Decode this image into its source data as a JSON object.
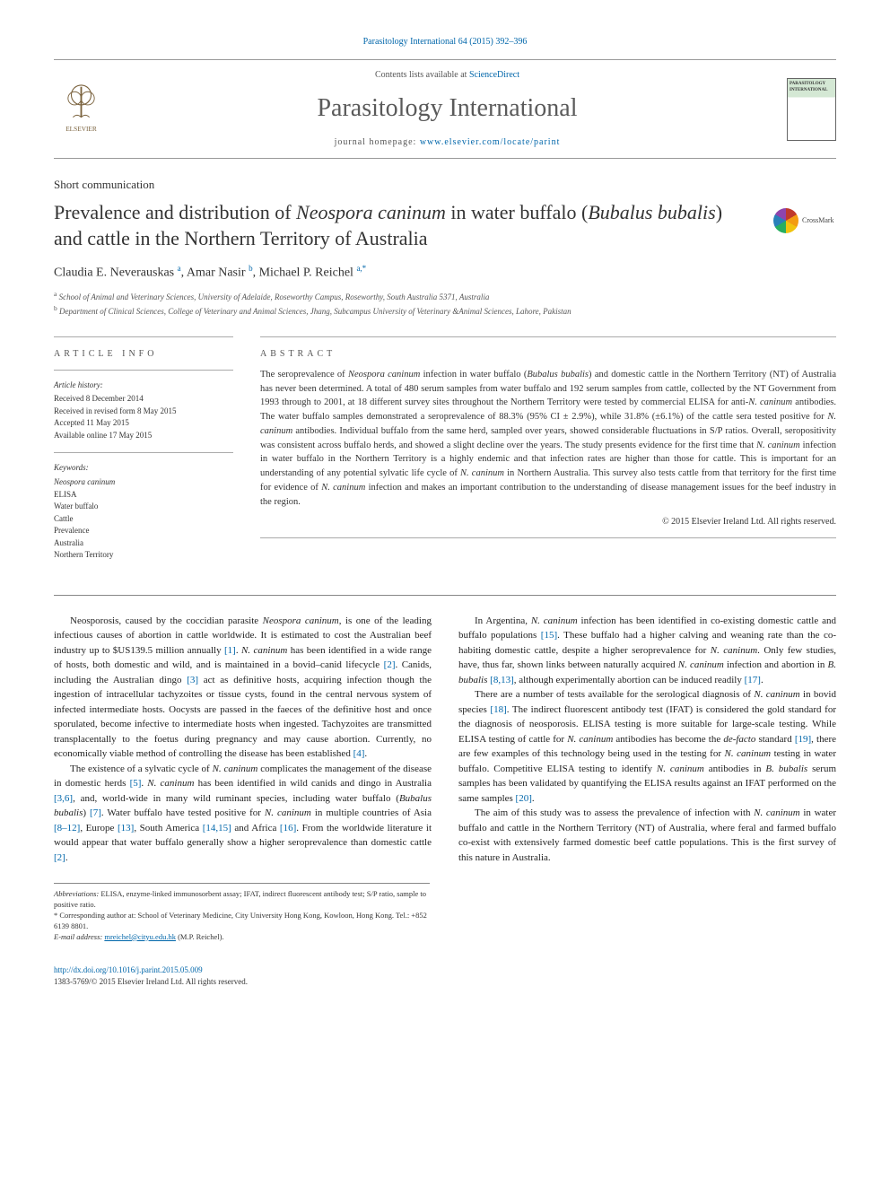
{
  "header": {
    "journal_ref": "Parasitology International 64 (2015) 392–396",
    "contents_line_pre": "Contents lists available at ",
    "contents_line_link": "ScienceDirect",
    "journal_name": "Parasitology International",
    "homepage_pre": "journal homepage: ",
    "homepage_link": "www.elsevier.com/locate/parint",
    "cover_title": "PARASITOLOGY INTERNATIONAL"
  },
  "article": {
    "type": "Short communication",
    "title_html": "Prevalence and distribution of <em>Neospora caninum</em> in water buffalo (<em>Bubalus bubalis</em>) and cattle in the Northern Territory of Australia",
    "crossmark": "CrossMark"
  },
  "authors": {
    "line_html": "Claudia E. Neverauskas <sup>a</sup>, Amar Nasir <sup>b</sup>, Michael P. Reichel <sup>a,*</sup>",
    "affiliations": [
      "a  School of Animal and Veterinary Sciences, University of Adelaide, Roseworthy Campus, Roseworthy, South Australia 5371, Australia",
      "b  Department of Clinical Sciences, College of Veterinary and Animal Sciences, Jhang, Subcampus University of Veterinary &Animal Sciences, Lahore, Pakistan"
    ]
  },
  "article_info": {
    "heading": "ARTICLE INFO",
    "history_label": "Article history:",
    "history": [
      "Received 8 December 2014",
      "Received in revised form 8 May 2015",
      "Accepted 11 May 2015",
      "Available online 17 May 2015"
    ],
    "keywords_label": "Keywords:",
    "keywords": [
      "<em>Neospora caninum</em>",
      "ELISA",
      "Water buffalo",
      "Cattle",
      "Prevalence",
      "Australia",
      "Northern Territory"
    ]
  },
  "abstract": {
    "heading": "ABSTRACT",
    "body_html": "The seroprevalence of <em>Neospora caninum</em> infection in water buffalo (<em>Bubalus bubalis</em>) and domestic cattle in the Northern Territory (NT) of Australia has never been determined. A total of 480 serum samples from water buffalo and 192 serum samples from cattle, collected by the NT Government from 1993 through to 2001, at 18 different survey sites throughout the Northern Territory were tested by commercial ELISA for anti-<em>N. caninum</em> antibodies. The water buffalo samples demonstrated a seroprevalence of 88.3% (95% CI ± 2.9%), while 31.8% (±6.1%) of the cattle sera tested positive for <em>N. caninum</em> antibodies. Individual buffalo from the same herd, sampled over years, showed considerable fluctuations in S/P ratios. Overall, seropositivity was consistent across buffalo herds, and showed a slight decline over the years. The study presents evidence for the first time that <em>N. caninum</em> infection in water buffalo in the Northern Territory is a highly endemic and that infection rates are higher than those for cattle. This is important for an understanding of any potential sylvatic life cycle of <em>N. caninum</em> in Northern Australia. This survey also tests cattle from that territory for the first time for evidence of <em>N. caninum</em> infection and makes an important contribution to the understanding of disease management issues for the beef industry in the region.",
    "copyright": "© 2015 Elsevier Ireland Ltd. All rights reserved."
  },
  "body": {
    "paragraphs": [
      "Neosporosis, caused by the coccidian parasite <em>Neospora caninum</em>, is one of the leading infectious causes of abortion in cattle worldwide. It is estimated to cost the Australian beef industry up to $US139.5 million annually <span class='ref'>[1]</span>. <em>N. caninum</em> has been identified in a wide range of hosts, both domestic and wild, and is maintained in a bovid–canid lifecycle <span class='ref'>[2]</span>. Canids, including the Australian dingo <span class='ref'>[3]</span> act as definitive hosts, acquiring infection though the ingestion of intracellular tachyzoites or tissue cysts, found in the central nervous system of infected intermediate hosts. Oocysts are passed in the faeces of the definitive host and once sporulated, become infective to intermediate hosts when ingested. Tachyzoites are transmitted transplacentally to the foetus during pregnancy and may cause abortion. Currently, no economically viable method of controlling the disease has been established <span class='ref'>[4]</span>.",
      "The existence of a sylvatic cycle of <em>N. caninum</em> complicates the management of the disease in domestic herds <span class='ref'>[5]</span>. <em>N. caninum</em> has been identified in wild canids and dingo in Australia <span class='ref'>[3,6]</span>, and, world-wide in many wild ruminant species, including water buffalo (<em>Bubalus bubalis</em>) <span class='ref'>[7]</span>. Water buffalo have tested positive for <em>N. caninum</em> in multiple countries of Asia <span class='ref'>[8–12]</span>, Europe <span class='ref'>[13]</span>, South America <span class='ref'>[14,15]</span> and Africa <span class='ref'>[16]</span>. From the worldwide literature it would appear that water buffalo generally show a higher seroprevalence than domestic cattle <span class='ref'>[2]</span>.",
      "In Argentina, <em>N. caninum</em> infection has been identified in co-existing domestic cattle and buffalo populations <span class='ref'>[15]</span>. These buffalo had a higher calving and weaning rate than the co-habiting domestic cattle, despite a higher seroprevalence for <em>N. caninum</em>. Only few studies, have, thus far, shown links between naturally acquired <em>N. caninum</em> infection and abortion in <em>B. bubalis</em> <span class='ref'>[8,13]</span>, although experimentally abortion can be induced readily <span class='ref'>[17]</span>.",
      "There are a number of tests available for the serological diagnosis of <em>N. caninum</em> in bovid species <span class='ref'>[18]</span>. The indirect fluorescent antibody test (IFAT) is considered the gold standard for the diagnosis of neosporosis. ELISA testing is more suitable for large-scale testing. While ELISA testing of cattle for <em>N. caninum</em> antibodies has become the <em>de-facto</em> standard <span class='ref'>[19]</span>, there are few examples of this technology being used in the testing for <em>N. caninum</em> testing in water buffalo. Competitive ELISA testing to identify <em>N. caninum</em> antibodies in <em>B. bubalis</em> serum samples has been validated by quantifying the ELISA results against an IFAT performed on the same samples <span class='ref'>[20]</span>.",
      "The aim of this study was to assess the prevalence of infection with <em>N. caninum</em> in water buffalo and cattle in the Northern Territory (NT) of Australia, where feral and farmed buffalo co-exist with extensively farmed domestic beef cattle populations. This is the first survey of this nature in Australia."
    ]
  },
  "footnotes": {
    "abbrev_html": "<em>Abbreviations:</em> ELISA, enzyme-linked immunosorbent assay; IFAT, indirect fluorescent antibody test; S/P ratio, sample to positive ratio.",
    "corresp_html": "* Corresponding author at: School of Veterinary Medicine, City University Hong Kong, Kowloon, Hong Kong. Tel.: +852 6139 8801.",
    "email_label": "E-mail address: ",
    "email": "mreichel@cityu.edu.hk",
    "email_person": " (M.P. Reichel)."
  },
  "footer": {
    "doi": "http://dx.doi.org/10.1016/j.parint.2015.05.009",
    "copyright": "1383-5769/© 2015 Elsevier Ireland Ltd. All rights reserved."
  },
  "colors": {
    "link": "#0066aa",
    "text": "#333333",
    "rule": "#999999",
    "elsevier_orange": "#ef7d20"
  }
}
